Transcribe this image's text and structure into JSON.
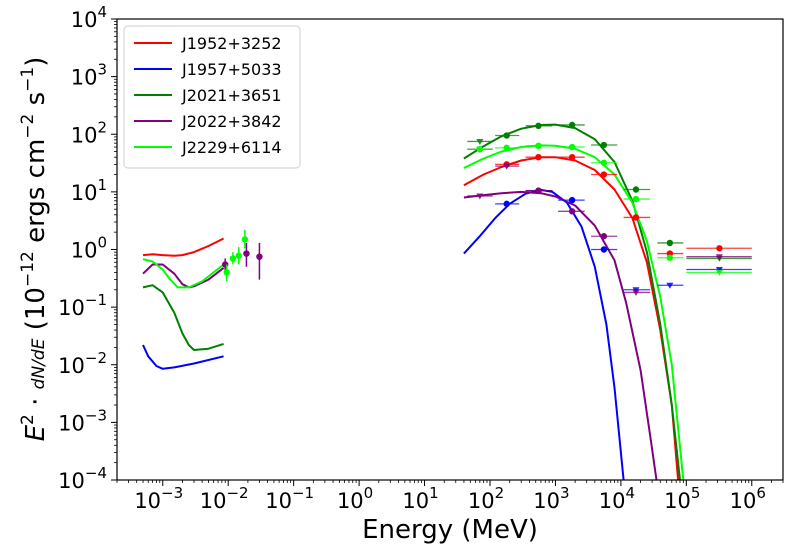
{
  "chart_data": {
    "type": "scatter",
    "title": "",
    "xlabel": "Energy (MeV)",
    "ylabel": "E^2 · dN/dE (10^-12 ergs cm^-2 s^-1)",
    "xscale": "log",
    "yscale": "log",
    "xlim": [
      0.0002,
      3000000
    ],
    "ylim": [
      0.0001,
      10000
    ],
    "grid": false,
    "legend_position": "top-left",
    "x_tick_labels": [
      {
        "base": "10",
        "exp": "−3",
        "x": 0.001
      },
      {
        "base": "10",
        "exp": "−2",
        "x": 0.01
      },
      {
        "base": "10",
        "exp": "−1",
        "x": 0.1
      },
      {
        "base": "10",
        "exp": "0",
        "x": 1
      },
      {
        "base": "10",
        "exp": "1",
        "x": 10
      },
      {
        "base": "10",
        "exp": "2",
        "x": 100
      },
      {
        "base": "10",
        "exp": "3",
        "x": 1000
      },
      {
        "base": "10",
        "exp": "4",
        "x": 10000
      },
      {
        "base": "10",
        "exp": "5",
        "x": 100000
      },
      {
        "base": "10",
        "exp": "6",
        "x": 1000000
      }
    ],
    "y_tick_labels": [
      {
        "base": "10",
        "exp": "−4",
        "y": 0.0001
      },
      {
        "base": "10",
        "exp": "−3",
        "y": 0.001
      },
      {
        "base": "10",
        "exp": "−2",
        "y": 0.01
      },
      {
        "base": "10",
        "exp": "−1",
        "y": 0.1
      },
      {
        "base": "10",
        "exp": "0",
        "y": 1
      },
      {
        "base": "10",
        "exp": "1",
        "y": 10
      },
      {
        "base": "10",
        "exp": "2",
        "y": 100
      },
      {
        "base": "10",
        "exp": "3",
        "y": 1000
      },
      {
        "base": "10",
        "exp": "4",
        "y": 10000
      }
    ],
    "series": [
      {
        "name": "J1952+3252",
        "color": "#ff0000",
        "low_curve": [
          [
            0.0005,
            0.8
          ],
          [
            0.0007,
            0.83
          ],
          [
            0.001,
            0.8
          ],
          [
            0.0015,
            0.78
          ],
          [
            0.002,
            0.8
          ],
          [
            0.003,
            0.9
          ],
          [
            0.005,
            1.15
          ],
          [
            0.0085,
            1.55
          ]
        ],
        "high_curve": [
          [
            40,
            13
          ],
          [
            80,
            20
          ],
          [
            150,
            27
          ],
          [
            300,
            35
          ],
          [
            600,
            40
          ],
          [
            1000,
            40
          ],
          [
            2000,
            35
          ],
          [
            4000,
            24
          ],
          [
            8000,
            11
          ],
          [
            15000,
            3.5
          ],
          [
            25000,
            0.6
          ],
          [
            40000,
            0.04
          ],
          [
            60000,
            0.002
          ],
          [
            75000,
            0.0001
          ]
        ],
        "points": [
          {
            "x": 180,
            "y": 30,
            "xerr": [
              120,
              280
            ],
            "marker": "circle"
          },
          {
            "x": 550,
            "y": 40,
            "xerr": [
              350,
              900
            ],
            "marker": "circle"
          },
          {
            "x": 1800,
            "y": 40,
            "xerr": [
              1100,
              2800
            ],
            "marker": "circle"
          },
          {
            "x": 5500,
            "y": 20,
            "xerr": [
              3500,
              8800
            ],
            "marker": "circle"
          },
          {
            "x": 17000,
            "y": 3.6,
            "xerr": [
              11000,
              28000
            ],
            "marker": "circle"
          },
          {
            "x": 56000,
            "y": 0.85,
            "xerr": [
              36000,
              90000
            ],
            "marker": "circle"
          },
          {
            "x": 320000,
            "y": 1.05,
            "xerr": [
              100000,
              1000000
            ],
            "marker": "circle"
          }
        ]
      },
      {
        "name": "J1957+5033",
        "color": "#0000ff",
        "low_curve": [
          [
            0.0005,
            0.022
          ],
          [
            0.0006,
            0.014
          ],
          [
            0.0008,
            0.0095
          ],
          [
            0.001,
            0.0085
          ],
          [
            0.0015,
            0.009
          ],
          [
            0.003,
            0.0105
          ],
          [
            0.0085,
            0.014
          ]
        ],
        "high_curve": [
          [
            40,
            0.85
          ],
          [
            70,
            1.7
          ],
          [
            120,
            3.5
          ],
          [
            200,
            6.2
          ],
          [
            350,
            9.3
          ],
          [
            600,
            10.8
          ],
          [
            900,
            10
          ],
          [
            1500,
            6.5
          ],
          [
            2500,
            2.5
          ],
          [
            4000,
            0.5
          ],
          [
            6000,
            0.05
          ],
          [
            8000,
            0.004
          ],
          [
            11000,
            0.0001
          ]
        ],
        "points": [
          {
            "x": 180,
            "y": 6.2,
            "xerr": [
              120,
              280
            ],
            "marker": "circle"
          },
          {
            "x": 550,
            "y": 10.5,
            "xerr": [
              350,
              900
            ],
            "marker": "circle"
          },
          {
            "x": 1800,
            "y": 7.2,
            "xerr": [
              1100,
              2800
            ],
            "marker": "circle"
          },
          {
            "x": 5500,
            "y": 1.0,
            "xerr": [
              3500,
              8800
            ],
            "marker": "circle"
          },
          {
            "x": 17000,
            "y": 0.2,
            "xerr": [
              11000,
              28000
            ],
            "marker": "triangle"
          },
          {
            "x": 56000,
            "y": 0.24,
            "xerr": [
              36000,
              90000
            ],
            "marker": "triangle"
          },
          {
            "x": 320000,
            "y": 0.45,
            "xerr": [
              100000,
              1000000
            ],
            "marker": "triangle"
          }
        ]
      },
      {
        "name": "J2021+3651",
        "color": "#008000",
        "low_curve": [
          [
            0.0005,
            0.22
          ],
          [
            0.0007,
            0.24
          ],
          [
            0.001,
            0.18
          ],
          [
            0.0015,
            0.08
          ],
          [
            0.002,
            0.035
          ],
          [
            0.0025,
            0.022
          ],
          [
            0.003,
            0.018
          ],
          [
            0.005,
            0.019
          ],
          [
            0.0085,
            0.023
          ]
        ],
        "high_curve": [
          [
            40,
            38
          ],
          [
            80,
            62
          ],
          [
            150,
            92
          ],
          [
            300,
            125
          ],
          [
            600,
            145
          ],
          [
            1000,
            147
          ],
          [
            2000,
            128
          ],
          [
            4000,
            82
          ],
          [
            8000,
            33
          ],
          [
            15000,
            7
          ],
          [
            25000,
            0.9
          ],
          [
            40000,
            0.05
          ],
          [
            60000,
            0.002
          ],
          [
            80000,
            0.0001
          ]
        ],
        "points": [
          {
            "x": 70,
            "y": 75,
            "xerr": [
              45,
              110
            ],
            "marker": "triangle"
          },
          {
            "x": 180,
            "y": 95,
            "xerr": [
              120,
              280
            ],
            "marker": "circle"
          },
          {
            "x": 550,
            "y": 140,
            "xerr": [
              350,
              900
            ],
            "marker": "circle"
          },
          {
            "x": 1800,
            "y": 145,
            "xerr": [
              1100,
              2800
            ],
            "marker": "circle"
          },
          {
            "x": 5500,
            "y": 65,
            "xerr": [
              3500,
              8800
            ],
            "marker": "circle"
          },
          {
            "x": 17000,
            "y": 11,
            "xerr": [
              11000,
              28000
            ],
            "marker": "circle"
          },
          {
            "x": 56000,
            "y": 1.3,
            "xerr": [
              36000,
              90000
            ],
            "marker": "circle"
          },
          {
            "x": 320000,
            "y": 0.7,
            "xerr": [
              100000,
              1000000
            ],
            "marker": "triangle"
          }
        ]
      },
      {
        "name": "J2022+3842",
        "color": "#800080",
        "low_curve": [
          [
            0.0005,
            0.38
          ],
          [
            0.0007,
            0.55
          ],
          [
            0.001,
            0.55
          ],
          [
            0.0015,
            0.38
          ],
          [
            0.002,
            0.25
          ],
          [
            0.0025,
            0.22
          ],
          [
            0.003,
            0.23
          ],
          [
            0.005,
            0.3
          ],
          [
            0.0085,
            0.48
          ]
        ],
        "high_curve": [
          [
            40,
            8
          ],
          [
            80,
            8.8
          ],
          [
            150,
            9.5
          ],
          [
            300,
            10
          ],
          [
            600,
            9.5
          ],
          [
            1000,
            8.3
          ],
          [
            2000,
            5.8
          ],
          [
            4000,
            2.6
          ],
          [
            8000,
            0.65
          ],
          [
            12000,
            0.12
          ],
          [
            20000,
            0.008
          ],
          [
            28000,
            0.0006
          ],
          [
            35000,
            0.0001
          ]
        ],
        "points": [
          {
            "x": 0.009,
            "y": 0.55,
            "yerr": [
              0.4,
              0.7
            ],
            "marker": "circle"
          },
          {
            "x": 0.019,
            "y": 0.85,
            "yerr": [
              0.5,
              1.3
            ],
            "marker": "circle"
          },
          {
            "x": 0.03,
            "y": 0.75,
            "yerr": [
              0.3,
              1.3
            ],
            "marker": "circle"
          },
          {
            "x": 70,
            "y": 55,
            "xerr": [
              45,
              110
            ],
            "marker": "triangle"
          },
          {
            "x": 70,
            "y": 8.5,
            "xerr": [
              45,
              110
            ],
            "marker": "triangle"
          },
          {
            "x": 180,
            "y": 28,
            "xerr": [
              120,
              280
            ],
            "marker": "triangle"
          },
          {
            "x": 550,
            "y": 10.5,
            "xerr": [
              350,
              900
            ],
            "marker": "circle"
          },
          {
            "x": 1800,
            "y": 4.6,
            "xerr": [
              1100,
              2800
            ],
            "marker": "circle"
          },
          {
            "x": 5500,
            "y": 1.7,
            "xerr": [
              3500,
              8800
            ],
            "marker": "circle"
          },
          {
            "x": 17000,
            "y": 0.18,
            "xerr": [
              11000,
              28000
            ],
            "marker": "triangle"
          },
          {
            "x": 320000,
            "y": 0.75,
            "xerr": [
              100000,
              1000000
            ],
            "marker": "triangle"
          }
        ]
      },
      {
        "name": "J2229+6114",
        "color": "#00ff00",
        "low_curve": [
          [
            0.0005,
            0.68
          ],
          [
            0.0007,
            0.62
          ],
          [
            0.001,
            0.45
          ],
          [
            0.0013,
            0.3
          ],
          [
            0.0017,
            0.22
          ],
          [
            0.0025,
            0.22
          ],
          [
            0.004,
            0.28
          ],
          [
            0.0085,
            0.55
          ]
        ],
        "high_curve": [
          [
            40,
            26
          ],
          [
            80,
            38
          ],
          [
            150,
            50
          ],
          [
            300,
            60
          ],
          [
            600,
            64
          ],
          [
            1000,
            63
          ],
          [
            2000,
            56
          ],
          [
            4000,
            40
          ],
          [
            8000,
            20
          ],
          [
            15000,
            6.5
          ],
          [
            25000,
            1.4
          ],
          [
            40000,
            0.15
          ],
          [
            60000,
            0.01
          ],
          [
            90000,
            0.0001
          ]
        ],
        "points": [
          {
            "x": 0.0095,
            "y": 0.4,
            "yerr": [
              0.28,
              0.55
            ],
            "marker": "circle"
          },
          {
            "x": 0.0118,
            "y": 0.7,
            "yerr": [
              0.55,
              0.9
            ],
            "marker": "circle"
          },
          {
            "x": 0.0145,
            "y": 0.78,
            "yerr": [
              0.55,
              1.1
            ],
            "marker": "circle"
          },
          {
            "x": 0.018,
            "y": 1.5,
            "yerr": [
              1.05,
              2.2
            ],
            "marker": "circle"
          },
          {
            "x": 70,
            "y": 55,
            "xerr": [
              45,
              110
            ],
            "marker": "circle"
          },
          {
            "x": 180,
            "y": 58,
            "xerr": [
              120,
              280
            ],
            "marker": "circle"
          },
          {
            "x": 550,
            "y": 63,
            "xerr": [
              350,
              900
            ],
            "marker": "circle"
          },
          {
            "x": 1800,
            "y": 60,
            "xerr": [
              1100,
              2800
            ],
            "marker": "circle"
          },
          {
            "x": 5500,
            "y": 32,
            "xerr": [
              3500,
              8800
            ],
            "marker": "circle"
          },
          {
            "x": 17000,
            "y": 7.5,
            "xerr": [
              11000,
              28000
            ],
            "marker": "circle"
          },
          {
            "x": 56000,
            "y": 0.72,
            "xerr": [
              36000,
              90000
            ],
            "marker": "circle"
          },
          {
            "x": 320000,
            "y": 0.4,
            "xerr": [
              100000,
              1000000
            ],
            "marker": "triangle"
          }
        ]
      }
    ]
  }
}
